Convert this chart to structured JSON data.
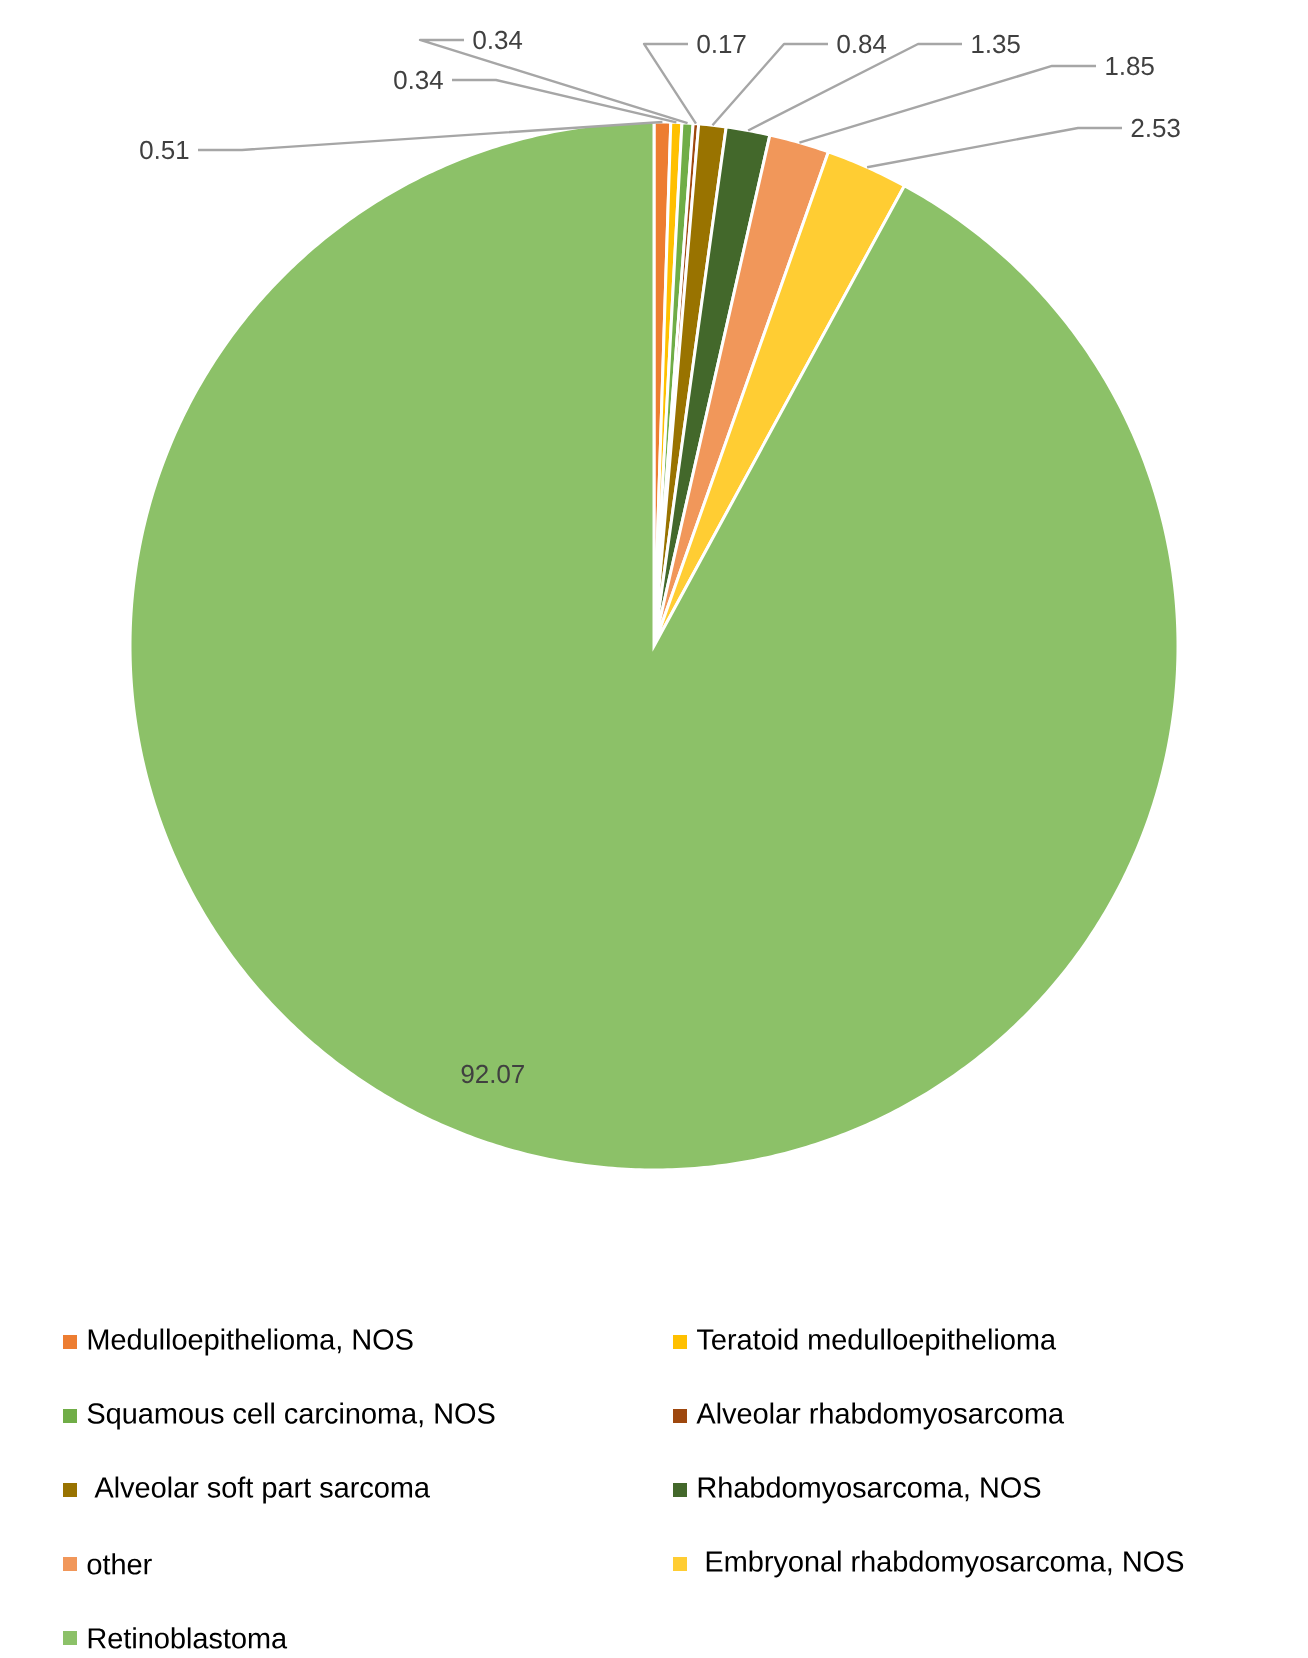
{
  "chart_data": {
    "type": "pie",
    "categories": [
      "Medulloepithelioma, NOS",
      "Teratoid medulloepithelioma",
      "Squamous cell carcinoma, NOS",
      "Alveolar rhabdomyosarcoma",
      " Alveolar soft part sarcoma",
      "Rhabdomyosarcoma, NOS",
      "other",
      " Embryonal rhabdomyosarcoma, NOS",
      "Retinoblastoma"
    ],
    "values": [
      0.51,
      0.34,
      0.34,
      0.17,
      0.84,
      1.35,
      1.85,
      2.53,
      92.07
    ],
    "colors": [
      "#ed7d31",
      "#ffc000",
      "#70ad47",
      "#9e480e",
      "#997300",
      "#43682b",
      "#f1975a",
      "#ffcd33",
      "#8cc168"
    ],
    "data_labels": true,
    "legend": "bottom"
  }
}
